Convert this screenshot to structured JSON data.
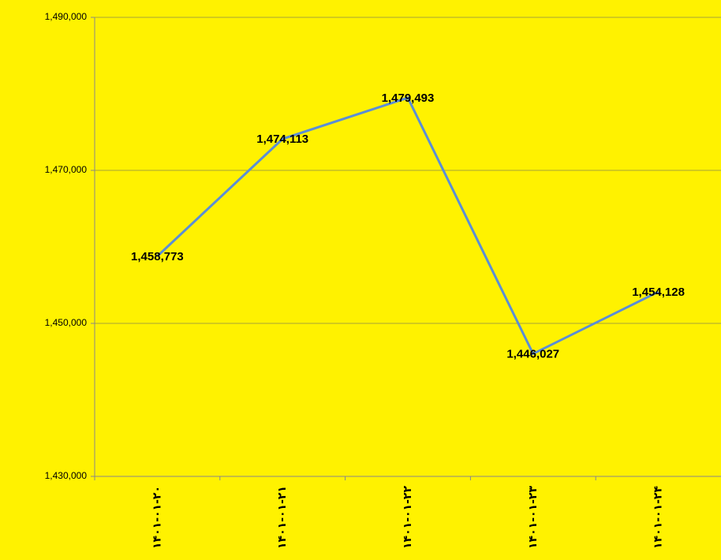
{
  "chart_data": {
    "type": "line",
    "categories": [
      "۱۴۰۱-۰۱-۲۰",
      "۱۴۰۱-۰۱-۲۱",
      "۱۴۰۱-۰۱-۲۲",
      "۱۴۰۱-۰۱-۲۳",
      "۱۴۰۱-۰۱-۲۴"
    ],
    "values": [
      1458773,
      1474113,
      1479493,
      1446027,
      1454128
    ],
    "value_labels": [
      "1,458,773",
      "1,474,113",
      "1,479,493",
      "1,446,027",
      "1,454,128"
    ],
    "color": "#5b8ed6",
    "ylim": [
      1430000,
      1490000
    ],
    "yticks": [
      {
        "value": 1430000,
        "label": "1,430,000"
      },
      {
        "value": 1450000,
        "label": "1,450,000"
      },
      {
        "value": 1470000,
        "label": "1,470,000"
      },
      {
        "value": 1490000,
        "label": "1,490,000"
      }
    ],
    "grid": true
  }
}
